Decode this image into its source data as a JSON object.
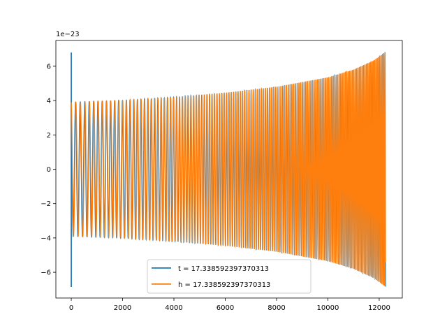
{
  "chart_data": {
    "type": "line",
    "title": "",
    "xlabel": "",
    "ylabel": "",
    "offset_label": "1e−23",
    "xlim": [
      -600,
      12900
    ],
    "ylim": [
      -7.5,
      7.5
    ],
    "x_ticks": [
      0,
      2000,
      4000,
      6000,
      8000,
      10000,
      12000
    ],
    "x_tick_labels": [
      "0",
      "2000",
      "4000",
      "6000",
      "8000",
      "10000",
      "12000"
    ],
    "y_ticks": [
      -6,
      -4,
      -2,
      0,
      2,
      4,
      6
    ],
    "y_tick_labels": [
      "−6",
      "−4",
      "−2",
      "0",
      "2",
      "4",
      "6"
    ],
    "grid": false,
    "legend_position": "lower center",
    "series": [
      {
        "name": "t = 17.338592397370313",
        "color": "#1f77b4",
        "description_points": {
          "spike_x": 0,
          "spike_y_range": [
            -6.85,
            6.8
          ],
          "note_envelope": "t-series follows same chirp beneath orange"
        }
      },
      {
        "name": "h = 17.338592397370313",
        "color": "#ff7f0e",
        "envelope": {
          "x": [
            0,
            2000,
            4000,
            6000,
            8000,
            10000,
            11000,
            11800,
            12250
          ],
          "amplitude": [
            3.9,
            4.0,
            4.2,
            4.45,
            4.8,
            5.35,
            5.8,
            6.35,
            6.85
          ]
        },
        "x_end": 12250
      }
    ]
  },
  "legend": {
    "items": [
      {
        "label": "t = 17.338592397370313",
        "color": "#1f77b4"
      },
      {
        "label": "h = 17.338592397370313",
        "color": "#ff7f0e"
      }
    ]
  }
}
